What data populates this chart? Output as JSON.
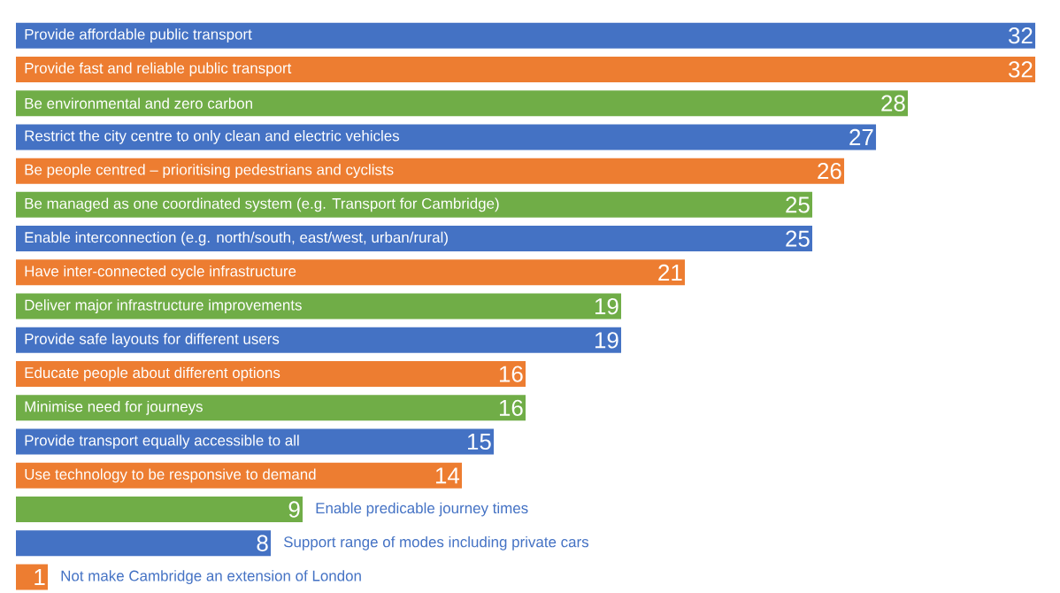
{
  "chart_data": {
    "type": "bar",
    "orientation": "horizontal",
    "data_labels": true,
    "categories": [
      "Provide affordable public transport",
      "Provide fast and reliable public transport",
      "Be environmental and zero carbon",
      "Restrict the city centre to only clean and electric vehicles",
      "Be people centred – prioritising pedestrians and cyclists",
      "Be managed as one coordinated system (e.g. Transport for Cambridge)",
      "Enable interconnection (e.g. north/south, east/west, urban/rural)",
      "Have inter-connected cycle infrastructure",
      "Deliver major infrastructure improvements",
      "Provide safe layouts for different users",
      "Educate people about different options",
      "Minimise need for journeys",
      "Provide transport equally accessible to all",
      "Use technology to be responsive to demand",
      "Enable predicable journey times",
      "Support range of modes including private cars",
      "Not make Cambridge an extension of London"
    ],
    "values": [
      32,
      32,
      28,
      27,
      26,
      25,
      25,
      21,
      19,
      19,
      16,
      16,
      15,
      14,
      9,
      8,
      1
    ],
    "colors": [
      "#4472c4",
      "#ed7d31",
      "#70ad47",
      "#4472c4",
      "#ed7d31",
      "#70ad47",
      "#4472c4",
      "#ed7d31",
      "#70ad47",
      "#4472c4",
      "#ed7d31",
      "#70ad47",
      "#4472c4",
      "#ed7d31",
      "#70ad47",
      "#4472c4",
      "#ed7d31"
    ]
  }
}
